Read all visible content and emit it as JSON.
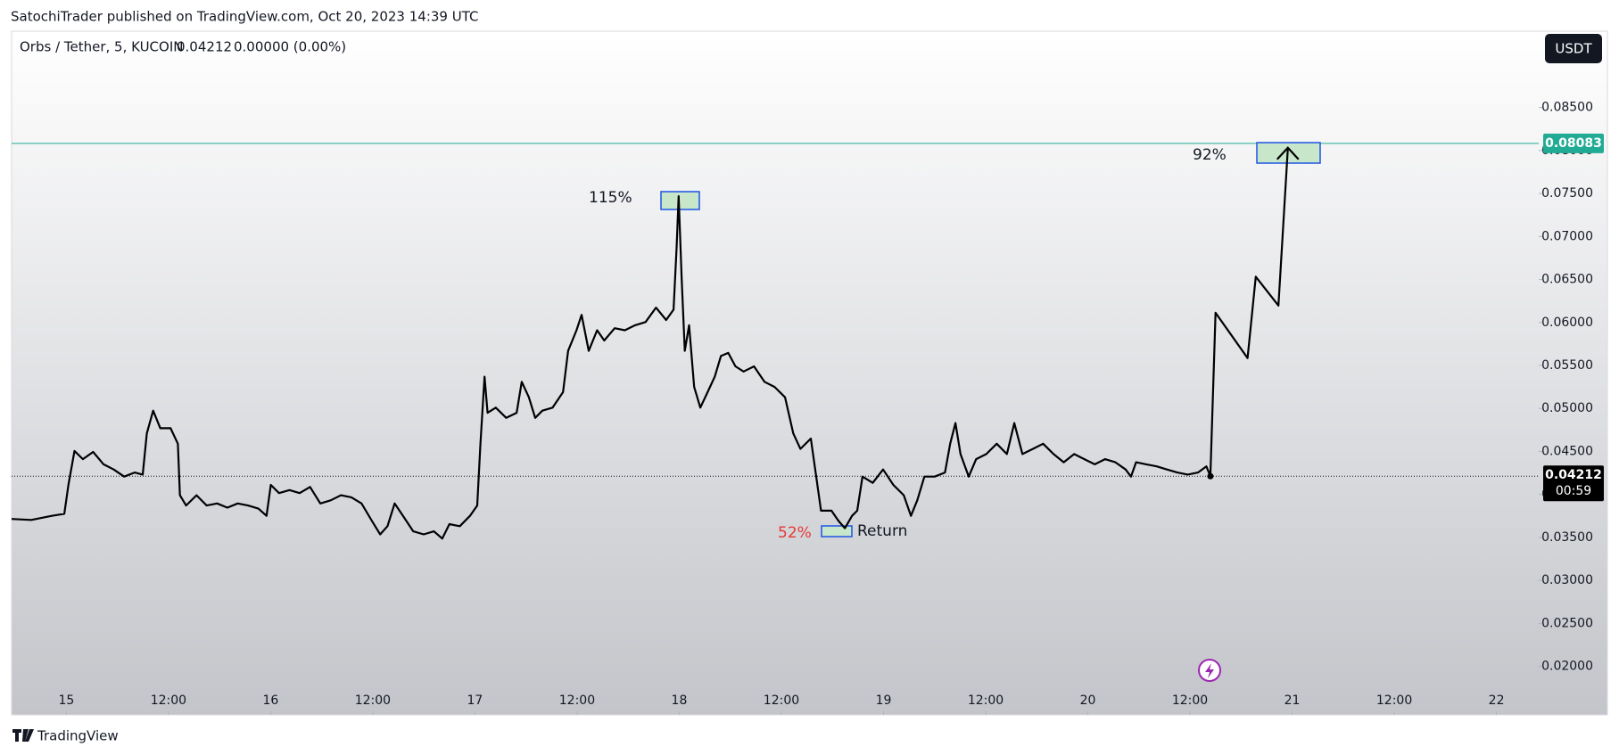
{
  "header": {
    "publisher": "SatochiTrader published on TradingView.com, Oct 20, 2023 14:39 UTC",
    "symbol": "Orbs / Tether, 5, KUCOIN",
    "quote": "0.04212",
    "change": "0.00000 (0.00%)",
    "currency": "USDT",
    "footer": "TradingView"
  },
  "chart_data": {
    "type": "line",
    "xlim": [
      14.732,
      22.207
    ],
    "xticks": [
      15,
      {
        "value": 15.5,
        "label": "12:00"
      },
      16,
      {
        "value": 16.5,
        "label": "12:00"
      },
      17,
      {
        "value": 17.5,
        "label": "12:00"
      },
      18,
      {
        "value": 18.5,
        "label": "12:00"
      },
      19,
      {
        "value": 19.5,
        "label": "12:00"
      },
      20,
      {
        "value": 20.5,
        "label": "12:00"
      },
      21,
      {
        "value": 21.5,
        "label": "12:00"
      },
      22
    ],
    "ylim": [
      0.01436,
      0.09388
    ],
    "yticks": [
      {
        "value": 0.02,
        "label": "0.02000"
      },
      {
        "value": 0.025,
        "label": "0.02500"
      },
      {
        "value": 0.03,
        "label": "0.03000"
      },
      {
        "value": 0.035,
        "label": "0.03500"
      },
      {
        "value": 0.04,
        "label": "0.04000"
      },
      {
        "value": 0.045,
        "label": "0.04500"
      },
      {
        "value": 0.05,
        "label": "0.05000"
      },
      {
        "value": 0.055,
        "label": "0.05500"
      },
      {
        "value": 0.06,
        "label": "0.06000"
      },
      {
        "value": 0.065,
        "label": "0.06500"
      },
      {
        "value": 0.07,
        "label": "0.07000"
      },
      {
        "value": 0.075,
        "label": "0.07500"
      },
      {
        "value": 0.08,
        "label": "0.08000"
      },
      {
        "value": 0.085,
        "label": "0.08500"
      }
    ],
    "grid": false,
    "series": [
      {
        "color": "#000000",
        "x": [
          14.732,
          14.828,
          14.929,
          14.99,
          15.01,
          15.04,
          15.081,
          15.131,
          15.182,
          15.232,
          15.283,
          15.334,
          15.374,
          15.394,
          15.425,
          15.46,
          15.51,
          15.546,
          15.556,
          15.586,
          15.637,
          15.687,
          15.738,
          15.788,
          15.839,
          15.889,
          15.94,
          15.98,
          16.001,
          16.041,
          16.092,
          16.142,
          16.193,
          16.243,
          16.294,
          16.344,
          16.395,
          16.445,
          16.496,
          16.536,
          16.572,
          16.607,
          16.648,
          16.698,
          16.749,
          16.799,
          16.84,
          16.875,
          16.926,
          16.976,
          17.011,
          17.027,
          17.047,
          17.062,
          17.102,
          17.153,
          17.204,
          17.229,
          17.264,
          17.295,
          17.33,
          17.38,
          17.431,
          17.456,
          17.497,
          17.522,
          17.557,
          17.598,
          17.633,
          17.684,
          17.734,
          17.785,
          17.835,
          17.886,
          17.936,
          17.972,
          17.987,
          17.997,
          18.012,
          18.027,
          18.048,
          18.073,
          18.103,
          18.139,
          18.174,
          18.204,
          18.24,
          18.275,
          18.315,
          18.366,
          18.417,
          18.467,
          18.518,
          18.558,
          18.593,
          18.644,
          18.669,
          18.694,
          18.745,
          18.78,
          18.811,
          18.846,
          18.871,
          18.897,
          18.947,
          18.998,
          19.048,
          19.099,
          19.134,
          19.165,
          19.2,
          19.25,
          19.301,
          19.326,
          19.352,
          19.377,
          19.417,
          19.453,
          19.503,
          19.554,
          19.604,
          19.64,
          19.68,
          19.731,
          19.781,
          19.832,
          19.882,
          19.933,
          19.983,
          20.034,
          20.084,
          20.135,
          20.185,
          20.211,
          20.236,
          20.286,
          20.337,
          20.387,
          20.438,
          20.489,
          20.539,
          20.58,
          20.6
        ],
        "values": [
          0.03715,
          0.03703,
          0.03751,
          0.03775,
          0.04111,
          0.04506,
          0.0441,
          0.04494,
          0.0435,
          0.0429,
          0.04207,
          0.04255,
          0.04231,
          0.0471,
          0.04974,
          0.0477,
          0.0477,
          0.0459,
          0.03991,
          0.03871,
          0.03991,
          0.03871,
          0.03895,
          0.03847,
          0.03895,
          0.03871,
          0.03835,
          0.03751,
          0.04111,
          0.04015,
          0.04051,
          0.04015,
          0.04087,
          0.03895,
          0.03931,
          0.03991,
          0.03967,
          0.03895,
          0.03691,
          0.03535,
          0.03631,
          0.03895,
          0.03751,
          0.03571,
          0.03535,
          0.03571,
          0.03487,
          0.03655,
          0.03631,
          0.03751,
          0.03871,
          0.0459,
          0.0537,
          0.0495,
          0.0501,
          0.0489,
          0.0495,
          0.0531,
          0.0513,
          0.0489,
          0.04974,
          0.0501,
          0.0519,
          0.0567,
          0.0591,
          0.06089,
          0.0567,
          0.0591,
          0.0579,
          0.05934,
          0.0591,
          0.05969,
          0.06005,
          0.06173,
          0.06029,
          0.06149,
          0.06869,
          0.07469,
          0.06509,
          0.0567,
          0.05969,
          0.0525,
          0.0501,
          0.0519,
          0.0537,
          0.0561,
          0.05646,
          0.0549,
          0.0543,
          0.0549,
          0.0531,
          0.0525,
          0.0513,
          0.0471,
          0.0453,
          0.0465,
          0.04231,
          0.03811,
          0.03811,
          0.03691,
          0.03607,
          0.03751,
          0.03811,
          0.04207,
          0.04135,
          0.0429,
          0.04111,
          0.03991,
          0.03751,
          0.03931,
          0.04207,
          0.04207,
          0.04255,
          0.0459,
          0.0483,
          0.0447,
          0.04207,
          0.0441,
          0.0447,
          0.0459,
          0.0447,
          0.0483,
          0.0447,
          0.0453,
          0.0459,
          0.0447,
          0.04374,
          0.0447,
          0.0441,
          0.0435,
          0.0441,
          0.04374,
          0.0429,
          0.04207,
          0.04374,
          0.0435,
          0.04326,
          0.0429,
          0.04255,
          0.04231,
          0.04255,
          0.04326,
          0.04212
        ]
      },
      {
        "color": "#000000",
        "arrow": true,
        "x": [
          20.6,
          20.625,
          20.782,
          20.822,
          20.933,
          20.979
        ],
        "values": [
          0.04212,
          0.06113,
          0.05586,
          0.06533,
          0.06197,
          0.08032
        ]
      }
    ],
    "last_price": {
      "value": 0.04212,
      "label": "0.04212",
      "countdown": "00:59"
    },
    "hline": {
      "value": 0.08083,
      "label": "0.08083",
      "color": "#22ab94"
    },
    "annotations": [
      "115%",
      "92%",
      "52%",
      "Return"
    ]
  }
}
